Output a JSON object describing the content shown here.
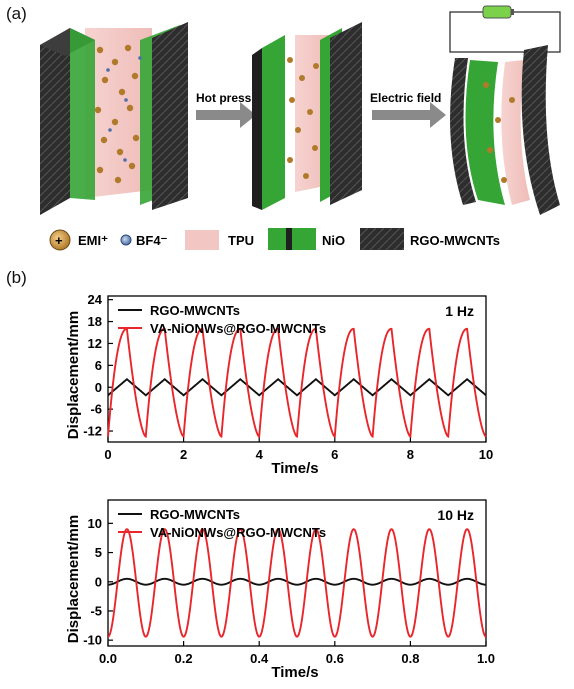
{
  "panels": {
    "a": "(a)",
    "b": "(b)"
  },
  "schematic": {
    "arrow1_label": "Hot press",
    "arrow2_label": "Electric field",
    "legend": [
      {
        "symbol": "+",
        "label": "EMI⁺"
      },
      {
        "symbol": "−",
        "label": "BF4⁻"
      },
      {
        "label": "TPU"
      },
      {
        "label": "NiO"
      },
      {
        "label": "RGO-MWCNTs"
      }
    ]
  },
  "colors": {
    "rgo": "#111111",
    "nio": "#e8262b",
    "tpu": "#f2c6c3",
    "nio_green": "#3cb43c",
    "electrode": "#2a2a2a"
  },
  "chart_data": [
    {
      "type": "line",
      "xlabel": "Time/s",
      "ylabel": "Displacement/mm",
      "annotation": "1 Hz",
      "xlim": [
        0,
        10
      ],
      "ylim": [
        -15,
        25
      ],
      "xticks": [
        0,
        2,
        4,
        6,
        8,
        10
      ],
      "yticks": [
        -12,
        -6,
        0,
        6,
        12,
        18,
        24
      ],
      "ytick_labels": [
        "-12",
        "-6",
        "0",
        "6",
        "12",
        "18",
        "24"
      ],
      "legend_position": "top-left",
      "frequency_hz": 1,
      "series": [
        {
          "name": "RGO-MWCNTs",
          "color": "#111111",
          "shape": "triangle",
          "amplitude": 2.2,
          "offset": 0,
          "phase": 0
        },
        {
          "name": "VA-NiONWs@RGO-MWCNTs",
          "color": "#e8262b",
          "shape": "sawtooth",
          "amplitude": 15,
          "offset": 0,
          "min": -13.5,
          "max": 16,
          "phase": 0
        }
      ]
    },
    {
      "type": "line",
      "xlabel": "Time/s",
      "ylabel": "Displacement/mm",
      "annotation": "10 Hz",
      "xlim": [
        0,
        1.0
      ],
      "ylim": [
        -11,
        14
      ],
      "xticks": [
        0.0,
        0.2,
        0.4,
        0.6,
        0.8,
        1.0
      ],
      "xtick_labels": [
        "0.0",
        "0.2",
        "0.4",
        "0.6",
        "0.8",
        "1.0"
      ],
      "yticks": [
        -10,
        -5,
        0,
        5,
        10
      ],
      "ytick_labels": [
        "-10",
        "-5",
        "0",
        "5",
        "10"
      ],
      "legend_position": "top-left",
      "frequency_hz": 10,
      "series": [
        {
          "name": "RGO-MWCNTs",
          "color": "#111111",
          "shape": "sine",
          "amplitude": 0.5,
          "offset": 0,
          "phase": 0
        },
        {
          "name": "VA-NiONWs@RGO-MWCNTs",
          "color": "#e8262b",
          "shape": "sine",
          "amplitude": 9.2,
          "offset": -0.2,
          "phase": 0
        }
      ]
    }
  ]
}
